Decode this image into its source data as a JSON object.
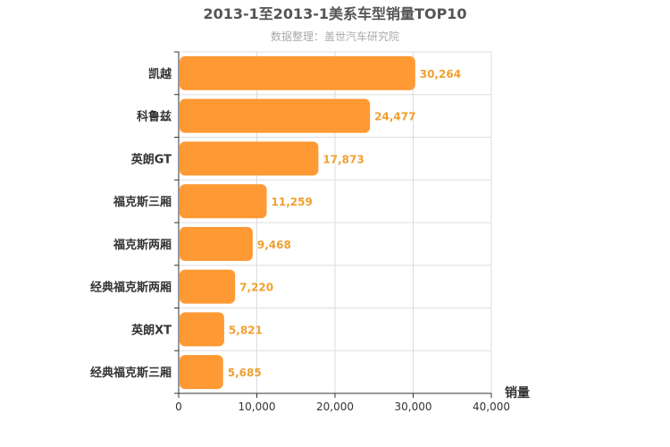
{
  "chart_data": {
    "type": "bar",
    "orientation": "horizontal",
    "title": "2013-1至2013-1美系车型销量TOP10",
    "subtitle": "数据整理：盖世汽车研究院",
    "categories": [
      "凯越",
      "科鲁兹",
      "英朗GT",
      "福克斯三厢",
      "福克斯两厢",
      "经典福克斯两厢",
      "英朗XT",
      "经典福克斯三厢"
    ],
    "values": [
      30264,
      24477,
      17873,
      11259,
      9468,
      7220,
      5821,
      5685
    ],
    "value_labels": [
      "30,264",
      "24,477",
      "17,873",
      "11,259",
      "9,468",
      "7,220",
      "5,821",
      "5,685"
    ],
    "xlabel": "销量",
    "ylabel": "",
    "xlim": [
      0,
      40000
    ],
    "x_ticks": [
      0,
      10000,
      20000,
      30000,
      40000
    ],
    "x_tick_labels": [
      "0",
      "10,000",
      "20,000",
      "30,000",
      "40,000"
    ],
    "grid": true,
    "bar_color": "#ff9933",
    "label_color": "#f0a030"
  }
}
